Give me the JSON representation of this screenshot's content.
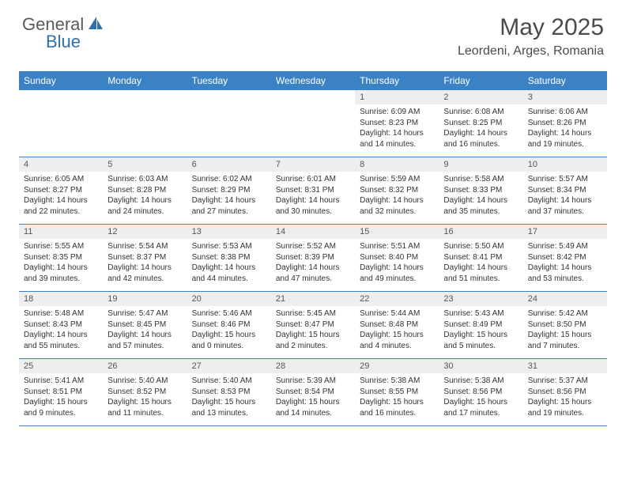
{
  "brand": {
    "text1": "General",
    "text2": "Blue",
    "color1": "#5a5a5a",
    "color2": "#2f6fb0",
    "icon_color": "#2f6fb0"
  },
  "title": "May 2025",
  "location": "Leordeni, Arges, Romania",
  "colors": {
    "header_bg": "#3b82c4",
    "header_text": "#ffffff",
    "daynum_bg": "#eeeeee",
    "daynum_text": "#555555",
    "body_text": "#333333",
    "divider": "#3b82c4"
  },
  "daynames": [
    "Sunday",
    "Monday",
    "Tuesday",
    "Wednesday",
    "Thursday",
    "Friday",
    "Saturday"
  ],
  "weeks": [
    [
      {
        "n": "",
        "sr": "",
        "ss": "",
        "dl": ""
      },
      {
        "n": "",
        "sr": "",
        "ss": "",
        "dl": ""
      },
      {
        "n": "",
        "sr": "",
        "ss": "",
        "dl": ""
      },
      {
        "n": "",
        "sr": "",
        "ss": "",
        "dl": ""
      },
      {
        "n": "1",
        "sr": "Sunrise: 6:09 AM",
        "ss": "Sunset: 8:23 PM",
        "dl": "Daylight: 14 hours and 14 minutes."
      },
      {
        "n": "2",
        "sr": "Sunrise: 6:08 AM",
        "ss": "Sunset: 8:25 PM",
        "dl": "Daylight: 14 hours and 16 minutes."
      },
      {
        "n": "3",
        "sr": "Sunrise: 6:06 AM",
        "ss": "Sunset: 8:26 PM",
        "dl": "Daylight: 14 hours and 19 minutes."
      }
    ],
    [
      {
        "n": "4",
        "sr": "Sunrise: 6:05 AM",
        "ss": "Sunset: 8:27 PM",
        "dl": "Daylight: 14 hours and 22 minutes."
      },
      {
        "n": "5",
        "sr": "Sunrise: 6:03 AM",
        "ss": "Sunset: 8:28 PM",
        "dl": "Daylight: 14 hours and 24 minutes."
      },
      {
        "n": "6",
        "sr": "Sunrise: 6:02 AM",
        "ss": "Sunset: 8:29 PM",
        "dl": "Daylight: 14 hours and 27 minutes."
      },
      {
        "n": "7",
        "sr": "Sunrise: 6:01 AM",
        "ss": "Sunset: 8:31 PM",
        "dl": "Daylight: 14 hours and 30 minutes."
      },
      {
        "n": "8",
        "sr": "Sunrise: 5:59 AM",
        "ss": "Sunset: 8:32 PM",
        "dl": "Daylight: 14 hours and 32 minutes."
      },
      {
        "n": "9",
        "sr": "Sunrise: 5:58 AM",
        "ss": "Sunset: 8:33 PM",
        "dl": "Daylight: 14 hours and 35 minutes."
      },
      {
        "n": "10",
        "sr": "Sunrise: 5:57 AM",
        "ss": "Sunset: 8:34 PM",
        "dl": "Daylight: 14 hours and 37 minutes."
      }
    ],
    [
      {
        "n": "11",
        "sr": "Sunrise: 5:55 AM",
        "ss": "Sunset: 8:35 PM",
        "dl": "Daylight: 14 hours and 39 minutes."
      },
      {
        "n": "12",
        "sr": "Sunrise: 5:54 AM",
        "ss": "Sunset: 8:37 PM",
        "dl": "Daylight: 14 hours and 42 minutes."
      },
      {
        "n": "13",
        "sr": "Sunrise: 5:53 AM",
        "ss": "Sunset: 8:38 PM",
        "dl": "Daylight: 14 hours and 44 minutes."
      },
      {
        "n": "14",
        "sr": "Sunrise: 5:52 AM",
        "ss": "Sunset: 8:39 PM",
        "dl": "Daylight: 14 hours and 47 minutes."
      },
      {
        "n": "15",
        "sr": "Sunrise: 5:51 AM",
        "ss": "Sunset: 8:40 PM",
        "dl": "Daylight: 14 hours and 49 minutes."
      },
      {
        "n": "16",
        "sr": "Sunrise: 5:50 AM",
        "ss": "Sunset: 8:41 PM",
        "dl": "Daylight: 14 hours and 51 minutes."
      },
      {
        "n": "17",
        "sr": "Sunrise: 5:49 AM",
        "ss": "Sunset: 8:42 PM",
        "dl": "Daylight: 14 hours and 53 minutes."
      }
    ],
    [
      {
        "n": "18",
        "sr": "Sunrise: 5:48 AM",
        "ss": "Sunset: 8:43 PM",
        "dl": "Daylight: 14 hours and 55 minutes."
      },
      {
        "n": "19",
        "sr": "Sunrise: 5:47 AM",
        "ss": "Sunset: 8:45 PM",
        "dl": "Daylight: 14 hours and 57 minutes."
      },
      {
        "n": "20",
        "sr": "Sunrise: 5:46 AM",
        "ss": "Sunset: 8:46 PM",
        "dl": "Daylight: 15 hours and 0 minutes."
      },
      {
        "n": "21",
        "sr": "Sunrise: 5:45 AM",
        "ss": "Sunset: 8:47 PM",
        "dl": "Daylight: 15 hours and 2 minutes."
      },
      {
        "n": "22",
        "sr": "Sunrise: 5:44 AM",
        "ss": "Sunset: 8:48 PM",
        "dl": "Daylight: 15 hours and 4 minutes."
      },
      {
        "n": "23",
        "sr": "Sunrise: 5:43 AM",
        "ss": "Sunset: 8:49 PM",
        "dl": "Daylight: 15 hours and 5 minutes."
      },
      {
        "n": "24",
        "sr": "Sunrise: 5:42 AM",
        "ss": "Sunset: 8:50 PM",
        "dl": "Daylight: 15 hours and 7 minutes."
      }
    ],
    [
      {
        "n": "25",
        "sr": "Sunrise: 5:41 AM",
        "ss": "Sunset: 8:51 PM",
        "dl": "Daylight: 15 hours and 9 minutes."
      },
      {
        "n": "26",
        "sr": "Sunrise: 5:40 AM",
        "ss": "Sunset: 8:52 PM",
        "dl": "Daylight: 15 hours and 11 minutes."
      },
      {
        "n": "27",
        "sr": "Sunrise: 5:40 AM",
        "ss": "Sunset: 8:53 PM",
        "dl": "Daylight: 15 hours and 13 minutes."
      },
      {
        "n": "28",
        "sr": "Sunrise: 5:39 AM",
        "ss": "Sunset: 8:54 PM",
        "dl": "Daylight: 15 hours and 14 minutes."
      },
      {
        "n": "29",
        "sr": "Sunrise: 5:38 AM",
        "ss": "Sunset: 8:55 PM",
        "dl": "Daylight: 15 hours and 16 minutes."
      },
      {
        "n": "30",
        "sr": "Sunrise: 5:38 AM",
        "ss": "Sunset: 8:56 PM",
        "dl": "Daylight: 15 hours and 17 minutes."
      },
      {
        "n": "31",
        "sr": "Sunrise: 5:37 AM",
        "ss": "Sunset: 8:56 PM",
        "dl": "Daylight: 15 hours and 19 minutes."
      }
    ]
  ]
}
